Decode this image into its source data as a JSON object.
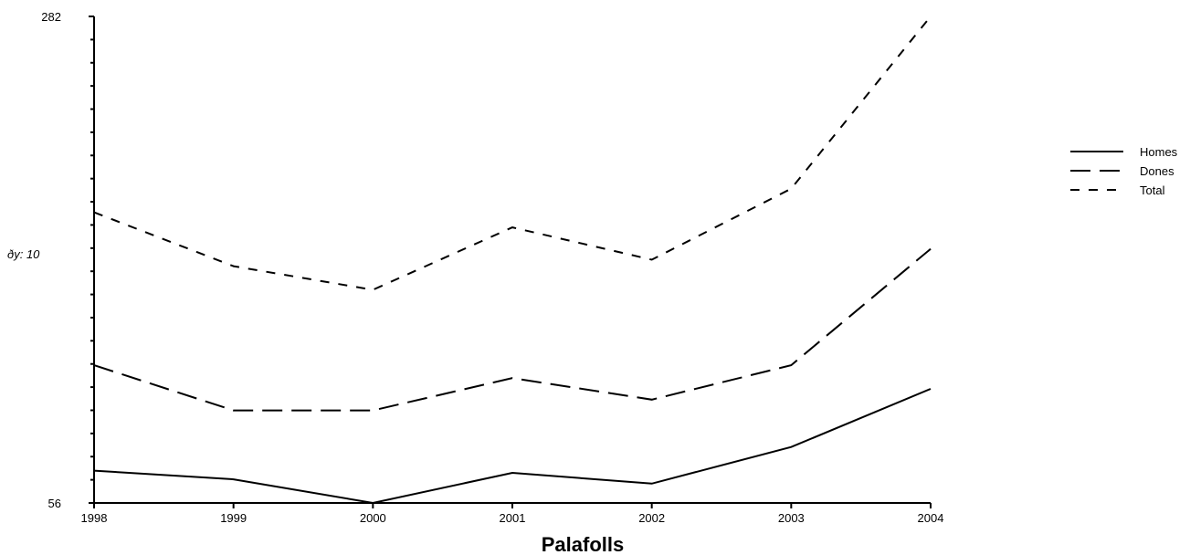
{
  "chart_data": {
    "type": "line",
    "title": "Palafolls",
    "xlabel": "",
    "ylabel": "ðy: 10",
    "x": [
      "1998",
      "1999",
      "2000",
      "2001",
      "2002",
      "2003",
      "2004"
    ],
    "ylim": [
      56,
      282
    ],
    "y_tick_labels": [
      "282",
      "56"
    ],
    "series": [
      {
        "name": "Homes",
        "values": [
          71,
          67,
          56,
          70,
          65,
          82,
          109
        ],
        "dash": "solid"
      },
      {
        "name": "Dones",
        "values": [
          120,
          99,
          99,
          114,
          104,
          120,
          174
        ],
        "dash": "long"
      },
      {
        "name": "Total",
        "values": [
          191,
          166,
          155,
          184,
          169,
          202,
          282
        ],
        "dash": "short"
      }
    ],
    "legend_position": "right",
    "grid": false
  }
}
